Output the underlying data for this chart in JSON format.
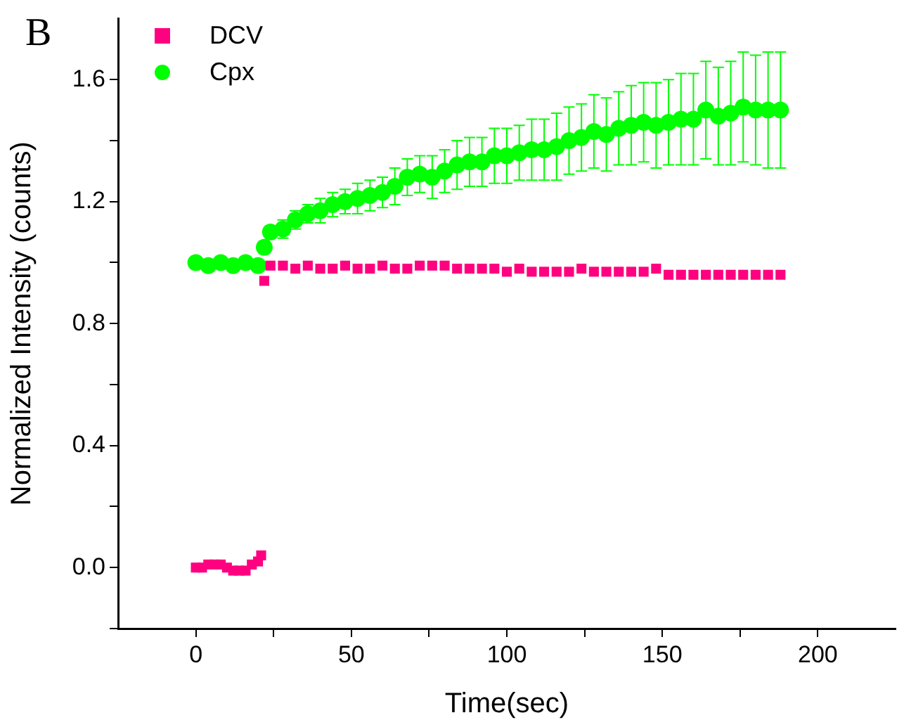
{
  "chart_data": {
    "type": "scatter",
    "title": "B",
    "xlabel": "Time(sec)",
    "ylabel": "Normalized Intensity (counts)",
    "xlim": [
      -25,
      225
    ],
    "xticks": [
      0,
      {
        "value": 25,
        "label": null
      },
      50,
      {
        "value": 75,
        "label": null
      },
      100,
      {
        "value": 125,
        "label": null
      },
      150,
      {
        "value": 175,
        "label": null
      },
      200
    ],
    "ylim": [
      -0.2,
      1.8
    ],
    "yticks": [
      {
        "value": -0.2,
        "label": null
      },
      "0.0",
      {
        "value": 0.2,
        "label": null
      },
      {
        "value": 0.4,
        "label": "0.4"
      },
      {
        "value": 0.6,
        "label": null
      },
      {
        "value": 0.8,
        "label": "0.8"
      },
      {
        "value": 1.0,
        "label": null
      },
      {
        "value": 1.2,
        "label": "1.2"
      },
      {
        "value": 1.4,
        "label": null
      },
      {
        "value": 1.6,
        "label": "1.6"
      }
    ],
    "grid": false,
    "legend": "top left",
    "series": [
      {
        "name": "DCV",
        "color": "#ff0080",
        "marker": "square",
        "x": [
          0,
          2,
          4,
          6,
          8,
          10,
          12,
          14,
          16,
          18,
          20,
          21,
          22,
          24,
          28,
          32,
          36,
          40,
          44,
          48,
          52,
          56,
          60,
          64,
          68,
          72,
          76,
          80,
          84,
          88,
          92,
          96,
          100,
          104,
          108,
          112,
          116,
          120,
          124,
          128,
          132,
          136,
          140,
          144,
          148,
          152,
          156,
          160,
          164,
          168,
          172,
          176,
          180,
          184,
          188
        ],
        "values": [
          0.0,
          0.0,
          0.01,
          0.01,
          0.01,
          0.0,
          -0.01,
          -0.01,
          -0.01,
          0.01,
          0.02,
          0.04,
          0.94,
          0.99,
          0.99,
          0.98,
          0.99,
          0.98,
          0.98,
          0.99,
          0.98,
          0.98,
          0.99,
          0.98,
          0.98,
          0.99,
          0.99,
          0.99,
          0.98,
          0.98,
          0.98,
          0.98,
          0.97,
          0.98,
          0.97,
          0.97,
          0.97,
          0.97,
          0.98,
          0.97,
          0.97,
          0.97,
          0.97,
          0.97,
          0.98,
          0.96,
          0.96,
          0.96,
          0.96,
          0.96,
          0.96,
          0.96,
          0.96,
          0.96,
          0.96
        ]
      },
      {
        "name": "Cpx",
        "color": "#00ff00",
        "marker": "circle",
        "x": [
          0,
          4,
          8,
          12,
          16,
          20,
          22,
          24,
          28,
          32,
          36,
          40,
          44,
          48,
          52,
          56,
          60,
          64,
          68,
          72,
          76,
          80,
          84,
          88,
          92,
          96,
          100,
          104,
          108,
          112,
          116,
          120,
          124,
          128,
          132,
          136,
          140,
          144,
          148,
          152,
          156,
          160,
          164,
          168,
          172,
          176,
          180,
          184,
          188
        ],
        "values": [
          1.0,
          0.99,
          1.0,
          0.99,
          1.0,
          0.99,
          1.05,
          1.1,
          1.11,
          1.14,
          1.16,
          1.17,
          1.19,
          1.2,
          1.21,
          1.22,
          1.23,
          1.25,
          1.28,
          1.29,
          1.28,
          1.3,
          1.32,
          1.33,
          1.33,
          1.35,
          1.35,
          1.36,
          1.37,
          1.37,
          1.38,
          1.4,
          1.41,
          1.43,
          1.42,
          1.44,
          1.45,
          1.46,
          1.45,
          1.46,
          1.47,
          1.47,
          1.5,
          1.48,
          1.49,
          1.51,
          1.5,
          1.5,
          1.5
        ],
        "errors": [
          0.01,
          0.01,
          0.01,
          0.01,
          0.01,
          0.01,
          0.02,
          0.02,
          0.03,
          0.03,
          0.03,
          0.04,
          0.04,
          0.04,
          0.05,
          0.05,
          0.05,
          0.06,
          0.06,
          0.06,
          0.07,
          0.07,
          0.08,
          0.08,
          0.08,
          0.09,
          0.09,
          0.09,
          0.1,
          0.1,
          0.11,
          0.11,
          0.11,
          0.12,
          0.12,
          0.12,
          0.13,
          0.13,
          0.14,
          0.14,
          0.15,
          0.15,
          0.16,
          0.16,
          0.17,
          0.18,
          0.18,
          0.19,
          0.19
        ]
      }
    ]
  }
}
